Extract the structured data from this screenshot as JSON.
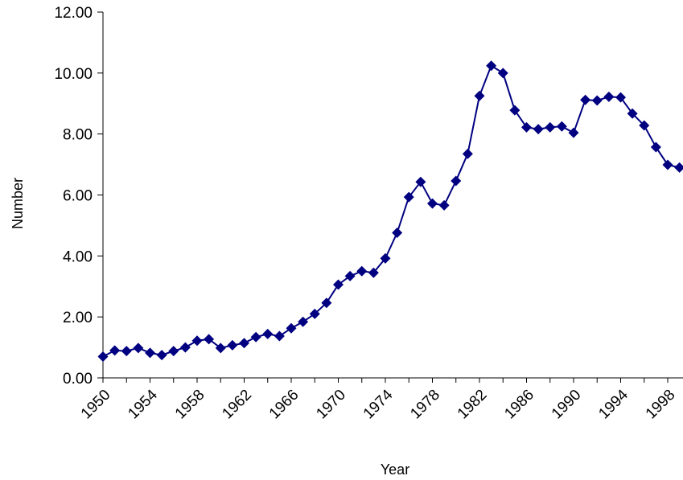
{
  "chart_data": {
    "type": "line",
    "title": "",
    "xlabel": "Year",
    "ylabel": "Number",
    "ylim": [
      0,
      12
    ],
    "xlim": [
      1950,
      1999
    ],
    "y_ticks": [
      "0.00",
      "2.00",
      "4.00",
      "6.00",
      "8.00",
      "10.00",
      "12.00"
    ],
    "y_tick_values": [
      0,
      2,
      4,
      6,
      8,
      10,
      12
    ],
    "x_ticks": [
      "1950",
      "1954",
      "1958",
      "1962",
      "1966",
      "1970",
      "1974",
      "1978",
      "1982",
      "1986",
      "1990",
      "1994",
      "1998"
    ],
    "x_tick_values": [
      1950,
      1954,
      1958,
      1962,
      1966,
      1970,
      1974,
      1978,
      1982,
      1986,
      1990,
      1994,
      1998
    ],
    "grid": false,
    "legend": "none",
    "series": [
      {
        "color": "#000080",
        "marker": "diamond",
        "x": [
          1950,
          1951,
          1952,
          1953,
          1954,
          1955,
          1956,
          1957,
          1958,
          1959,
          1960,
          1961,
          1962,
          1963,
          1964,
          1965,
          1966,
          1967,
          1968,
          1969,
          1970,
          1971,
          1972,
          1973,
          1974,
          1975,
          1976,
          1977,
          1978,
          1979,
          1980,
          1981,
          1982,
          1983,
          1984,
          1985,
          1986,
          1987,
          1988,
          1989,
          1990,
          1991,
          1992,
          1993,
          1994,
          1995,
          1996,
          1997,
          1998,
          1999
        ],
        "values": [
          0.7,
          0.9,
          0.88,
          0.98,
          0.82,
          0.75,
          0.88,
          1.0,
          1.22,
          1.27,
          0.98,
          1.07,
          1.14,
          1.34,
          1.44,
          1.37,
          1.63,
          1.84,
          2.1,
          2.46,
          3.06,
          3.34,
          3.5,
          3.45,
          3.92,
          4.76,
          5.93,
          6.43,
          5.72,
          5.66,
          6.46,
          7.35,
          9.25,
          10.24,
          10.0,
          8.78,
          8.22,
          8.16,
          8.22,
          8.25,
          8.04,
          9.12,
          9.1,
          9.22,
          9.2,
          8.67,
          8.28,
          7.57,
          6.99,
          6.9
        ]
      }
    ]
  }
}
